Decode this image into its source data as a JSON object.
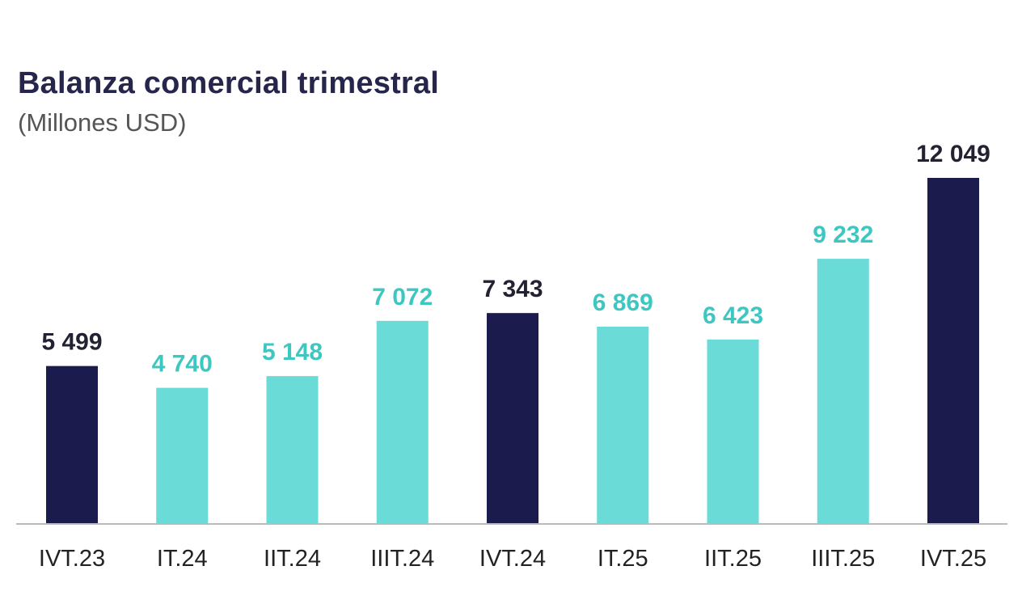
{
  "chart_data": {
    "type": "bar",
    "title": "Balanza comercial trimestral",
    "subtitle": "(Millones USD)",
    "categories": [
      "IVT.23",
      "IT.24",
      "IIT.24",
      "IIIT.24",
      "IVT.24",
      "IT.25",
      "IIT.25",
      "IIIT.25",
      "IVT.25"
    ],
    "values": [
      5499,
      4740,
      5148,
      7072,
      7343,
      6869,
      6423,
      9232,
      12049
    ],
    "value_labels": [
      "5 499",
      "4 740",
      "5 148",
      "7 072",
      "7 343",
      "6 869",
      "6 423",
      "9 232",
      "12 049"
    ],
    "highlight": [
      true,
      false,
      false,
      false,
      true,
      false,
      false,
      false,
      true
    ],
    "colors": {
      "highlight_bar": "#1c1b4d",
      "regular_bar": "#6adbd6",
      "highlight_label": "#222233",
      "regular_label": "#3ec7c1",
      "axis_line": "#bbbbbb",
      "tick_label": "#222222"
    },
    "ylim": [
      0,
      12049
    ],
    "grid": false,
    "legend": "none"
  }
}
